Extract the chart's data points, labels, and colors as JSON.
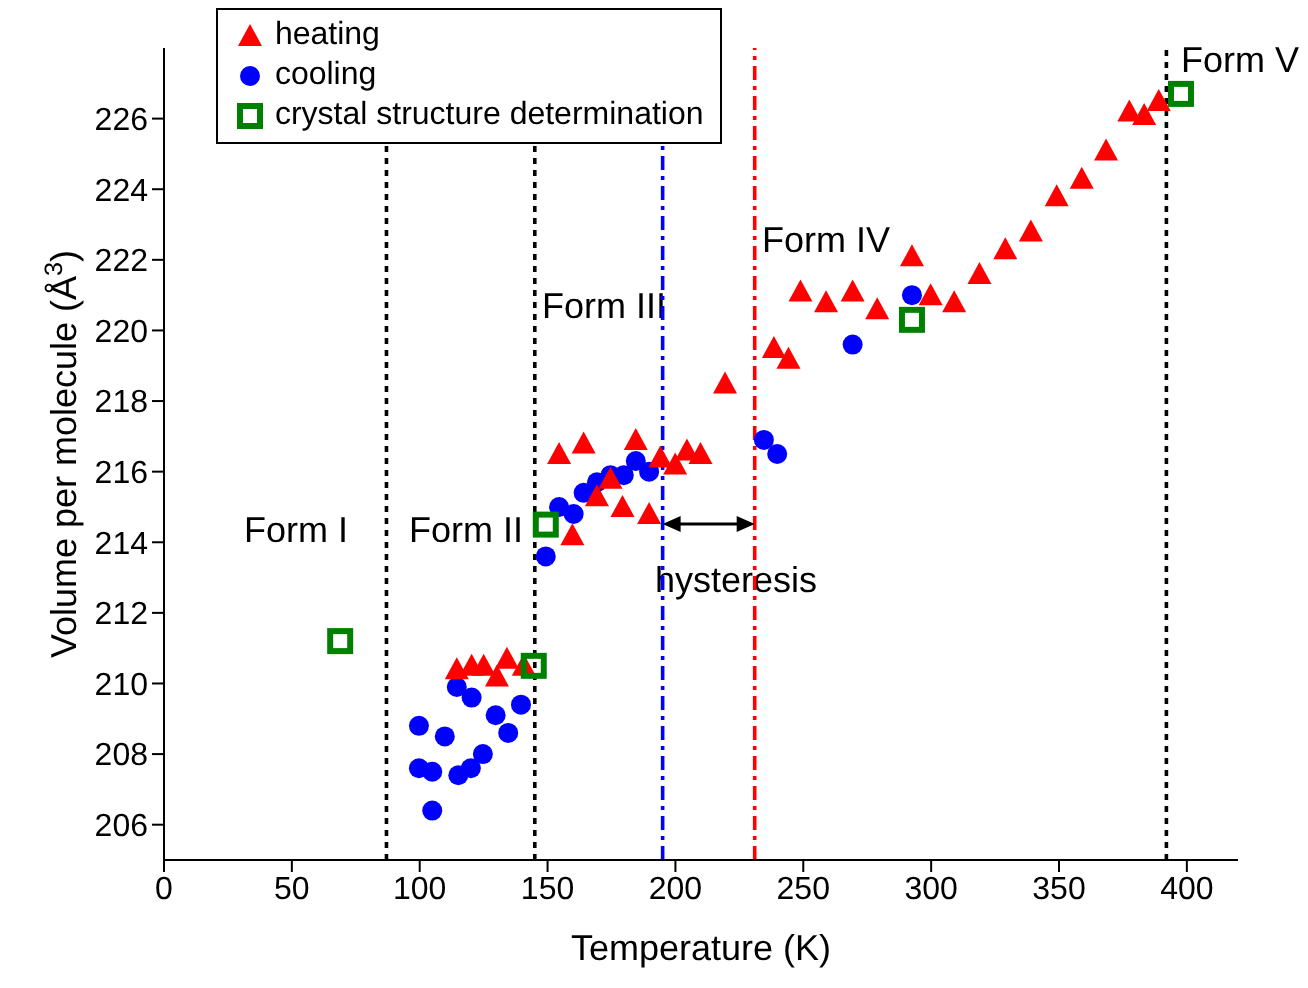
{
  "chart_data": {
    "type": "scatter",
    "xlabel": "Temperature (K)",
    "ylabel": "Volume per molecule (Å$^{3}$)",
    "xlim": [
      0,
      420
    ],
    "ylim": [
      205,
      228
    ],
    "xticks": [
      0,
      50,
      100,
      150,
      200,
      250,
      300,
      350,
      400
    ],
    "yticks": [
      206,
      208,
      210,
      212,
      214,
      216,
      218,
      220,
      222,
      224,
      226
    ],
    "grid": false,
    "legend": "top left",
    "series": [
      {
        "name": "heating",
        "color": "#ff0000",
        "marker": "triangle",
        "x": [
          114.5,
          120.3,
          125,
          130.2,
          134.1,
          140.7,
          154.5,
          159.7,
          164.1,
          169.3,
          174.6,
          179.3,
          184.5,
          189.7,
          194.1,
          199.9,
          204.5,
          209.8,
          219.4,
          238.5,
          244.2,
          248.9,
          258.9,
          269.3,
          278.9,
          292.5,
          299.8,
          309,
          318.9,
          329,
          339,
          349.1,
          358.9,
          368.4,
          377.5,
          383.3,
          389
        ],
        "values": [
          210.4,
          210.5,
          210.5,
          210.2,
          210.7,
          210.5,
          216.5,
          214.2,
          216.8,
          215.3,
          215.8,
          215,
          216.9,
          214.8,
          216.4,
          216.2,
          216.6,
          216.5,
          218.5,
          219.5,
          219.2,
          221.1,
          220.8,
          221.1,
          220.6,
          222.1,
          221,
          220.8,
          221.6,
          222.3,
          222.8,
          223.8,
          224.3,
          225.1,
          226.2,
          226.1,
          226.5
        ]
      },
      {
        "name": "cooling",
        "color": "#0000ff",
        "marker": "circle",
        "x": [
          99.7,
          109.8,
          99.7,
          104.9,
          104.9,
          114.5,
          120.3,
          115.1,
          120,
          124.7,
          129.7,
          134.6,
          139.6,
          149.3,
          154.5,
          160.2,
          164.1,
          169.3,
          174.6,
          179.8,
          184.5,
          189.7,
          234.6,
          239.8,
          269.3,
          292.5
        ],
        "values": [
          208.8,
          208.5,
          207.6,
          207.5,
          206.4,
          209.9,
          209.6,
          207.4,
          207.6,
          208,
          209.1,
          208.6,
          209.4,
          213.6,
          215,
          214.8,
          215.4,
          215.7,
          215.9,
          215.9,
          216.3,
          216,
          216.9,
          216.5,
          219.6,
          221
        ]
      },
      {
        "name": "crystal structure determination",
        "color": "#008000",
        "marker": "square",
        "x": [
          68.9,
          144.6,
          149.3,
          292.5,
          397.7
        ],
        "values": [
          211.2,
          210.5,
          214.5,
          220.3,
          226.7
        ]
      }
    ],
    "ref_lines": [
      {
        "axis": "x",
        "value": 87,
        "color": "#000000",
        "line_style": "dotted"
      },
      {
        "axis": "x",
        "value": 145,
        "color": "#000000",
        "line_style": "dotted"
      },
      {
        "axis": "x",
        "value": 195,
        "color": "#0000ff",
        "line_style": "dashed"
      },
      {
        "axis": "x",
        "value": 231,
        "color": "#ff0000",
        "line_style": "dashed"
      },
      {
        "axis": "x",
        "value": 392,
        "color": "#000000",
        "line_style": "dotted"
      }
    ],
    "annotations": [
      "Form I",
      "Form II",
      "Form III",
      "Form IV",
      "Form V",
      "hysteresis"
    ]
  }
}
